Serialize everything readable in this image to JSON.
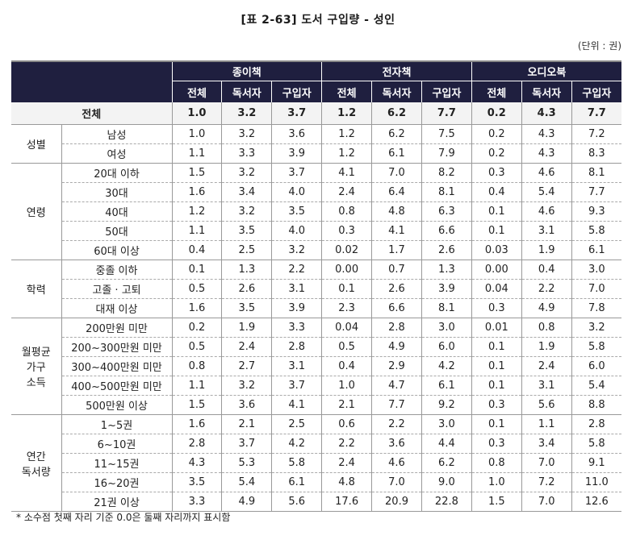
{
  "title": "[표 2-63] 도서 구입량 - 성인",
  "unit": "(단위 : 권)",
  "header": {
    "groups": [
      "종이책",
      "전자책",
      "오디오북"
    ],
    "subcolumns": [
      "전체",
      "독서자",
      "구입자"
    ]
  },
  "total_row": {
    "label": "전체",
    "values": [
      "1.0",
      "3.2",
      "3.7",
      "1.2",
      "6.2",
      "7.7",
      "0.2",
      "4.3",
      "7.7"
    ]
  },
  "sections": [
    {
      "label": "성별",
      "rows": [
        {
          "label": "남성",
          "values": [
            "1.0",
            "3.2",
            "3.6",
            "1.2",
            "6.2",
            "7.5",
            "0.2",
            "4.3",
            "7.2"
          ]
        },
        {
          "label": "여성",
          "values": [
            "1.1",
            "3.3",
            "3.9",
            "1.2",
            "6.1",
            "7.9",
            "0.2",
            "4.3",
            "8.3"
          ]
        }
      ]
    },
    {
      "label": "연령",
      "rows": [
        {
          "label": "20대 이하",
          "values": [
            "1.5",
            "3.2",
            "3.7",
            "4.1",
            "7.0",
            "8.2",
            "0.3",
            "4.6",
            "8.1"
          ]
        },
        {
          "label": "30대",
          "values": [
            "1.6",
            "3.4",
            "4.0",
            "2.4",
            "6.4",
            "8.1",
            "0.4",
            "5.4",
            "7.7"
          ]
        },
        {
          "label": "40대",
          "values": [
            "1.2",
            "3.2",
            "3.5",
            "0.8",
            "4.8",
            "6.3",
            "0.1",
            "4.6",
            "9.3"
          ]
        },
        {
          "label": "50대",
          "values": [
            "1.1",
            "3.5",
            "4.0",
            "0.3",
            "4.1",
            "6.6",
            "0.1",
            "3.1",
            "5.8"
          ]
        },
        {
          "label": "60대 이상",
          "values": [
            "0.4",
            "2.5",
            "3.2",
            "0.02",
            "1.7",
            "2.6",
            "0.03",
            "1.9",
            "6.1"
          ]
        }
      ]
    },
    {
      "label": "학력",
      "rows": [
        {
          "label": "중졸 이하",
          "values": [
            "0.1",
            "1.3",
            "2.2",
            "0.00",
            "0.7",
            "1.3",
            "0.00",
            "0.4",
            "3.0"
          ]
        },
        {
          "label": "고졸 · 고퇴",
          "values": [
            "0.5",
            "2.6",
            "3.1",
            "0.1",
            "2.6",
            "3.9",
            "0.04",
            "2.2",
            "7.0"
          ]
        },
        {
          "label": "대재 이상",
          "values": [
            "1.6",
            "3.5",
            "3.9",
            "2.3",
            "6.6",
            "8.1",
            "0.3",
            "4.9",
            "7.8"
          ]
        }
      ]
    },
    {
      "label": "월평균 가구 소득",
      "label_lines": [
        "월평균",
        "가구",
        "소득"
      ],
      "rows": [
        {
          "label": "200만원 미만",
          "values": [
            "0.2",
            "1.9",
            "3.3",
            "0.04",
            "2.8",
            "3.0",
            "0.01",
            "0.8",
            "3.2"
          ]
        },
        {
          "label": "200~300만원 미만",
          "values": [
            "0.5",
            "2.4",
            "2.8",
            "0.5",
            "4.9",
            "6.0",
            "0.1",
            "1.9",
            "5.8"
          ]
        },
        {
          "label": "300~400만원 미만",
          "values": [
            "0.8",
            "2.7",
            "3.1",
            "0.4",
            "2.9",
            "4.2",
            "0.1",
            "2.4",
            "6.0"
          ]
        },
        {
          "label": "400~500만원 미만",
          "values": [
            "1.1",
            "3.2",
            "3.7",
            "1.0",
            "4.7",
            "6.1",
            "0.1",
            "3.1",
            "5.4"
          ]
        },
        {
          "label": "500만원 이상",
          "values": [
            "1.5",
            "3.6",
            "4.1",
            "2.1",
            "7.7",
            "9.2",
            "0.3",
            "5.6",
            "8.8"
          ]
        }
      ]
    },
    {
      "label": "연간 독서량",
      "label_lines": [
        "연간",
        "독서량"
      ],
      "rows": [
        {
          "label": "1~5권",
          "values": [
            "1.6",
            "2.1",
            "2.5",
            "0.6",
            "2.2",
            "3.0",
            "0.1",
            "1.1",
            "2.8"
          ]
        },
        {
          "label": "6~10권",
          "values": [
            "2.8",
            "3.7",
            "4.2",
            "2.2",
            "3.6",
            "4.4",
            "0.3",
            "3.4",
            "5.8"
          ]
        },
        {
          "label": "11~15권",
          "values": [
            "4.3",
            "5.3",
            "5.8",
            "2.4",
            "4.6",
            "6.2",
            "0.8",
            "7.0",
            "9.1"
          ]
        },
        {
          "label": "16~20권",
          "values": [
            "3.5",
            "5.4",
            "6.1",
            "4.8",
            "7.0",
            "9.0",
            "1.0",
            "7.2",
            "11.0"
          ]
        },
        {
          "label": "21권 이상",
          "values": [
            "3.3",
            "4.9",
            "5.6",
            "17.6",
            "20.9",
            "22.8",
            "1.5",
            "7.0",
            "12.6"
          ]
        }
      ]
    }
  ],
  "footnote": "* 소수점 첫째 자리 기준 0.0은 둘째 자리까지 표시함",
  "colors": {
    "header_bg": "#1f1f3f",
    "header_text": "#ffffff",
    "total_row_bg": "#f3f3f3",
    "border": "#999999"
  }
}
